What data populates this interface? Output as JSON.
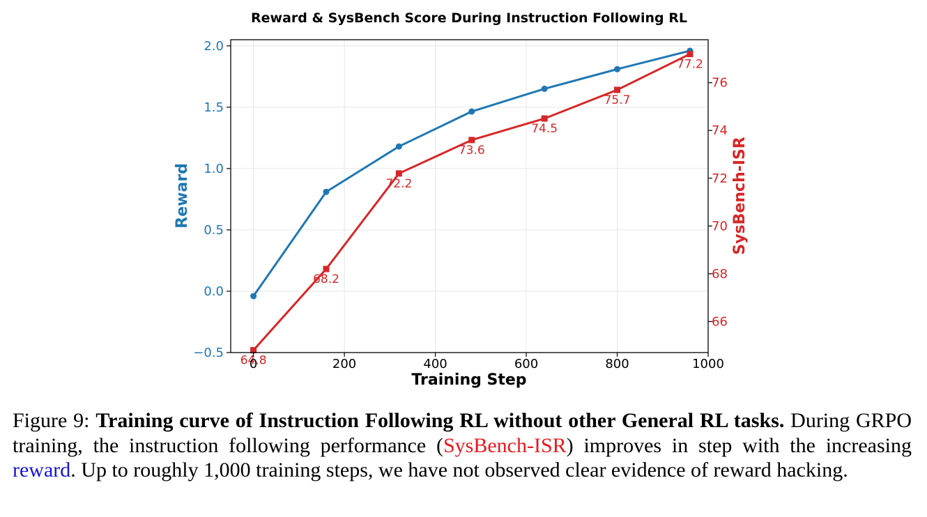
{
  "chart_data": {
    "type": "line",
    "title": "Reward & SysBench Score During Instruction Following RL",
    "xlabel": "Training Step",
    "xlim": [
      -50,
      1000
    ],
    "xticks": [
      0,
      200,
      400,
      600,
      800,
      1000
    ],
    "grid": true,
    "left_axis": {
      "label": "Reward",
      "ylim": [
        -0.5,
        2.05
      ],
      "ticks": [
        -0.5,
        0.0,
        0.5,
        1.0,
        1.5,
        2.0
      ],
      "tick_labels": [
        "−0.5",
        "0.0",
        "0.5",
        "1.0",
        "1.5",
        "2.0"
      ]
    },
    "right_axis": {
      "label": "SysBench-ISR",
      "ylim": [
        64.7,
        77.8
      ],
      "ticks": [
        66,
        68,
        70,
        72,
        74,
        76
      ],
      "tick_labels": [
        "66",
        "68",
        "70",
        "72",
        "74",
        "76"
      ]
    },
    "series": [
      {
        "axis": "left",
        "color": "#1f77b4",
        "marker": "circle",
        "x": [
          0,
          160,
          320,
          480,
          640,
          800,
          960
        ],
        "y": [
          -0.04,
          0.81,
          1.18,
          1.465,
          1.65,
          1.81,
          1.96
        ]
      },
      {
        "axis": "right",
        "color": "#d62728",
        "marker": "square",
        "x": [
          0,
          160,
          320,
          480,
          640,
          800,
          960
        ],
        "y": [
          64.8,
          68.2,
          72.2,
          73.6,
          74.5,
          75.7,
          77.2
        ],
        "data_labels": [
          "64.8",
          "68.2",
          "72.2",
          "73.6",
          "74.5",
          "75.7",
          "77.2"
        ]
      }
    ]
  },
  "caption": {
    "label": "Figure 9: ",
    "bold": "Training curve of Instruction Following RL without other General RL tasks.",
    "text1": " During GRPO training, the instruction following performance (",
    "red_term": "SysBench-ISR",
    "text2": ") improves in step with the increasing ",
    "blue_term": "reward",
    "text3": ". Up to roughly 1,000 training steps, we have not observed clear evidence of reward hacking."
  }
}
